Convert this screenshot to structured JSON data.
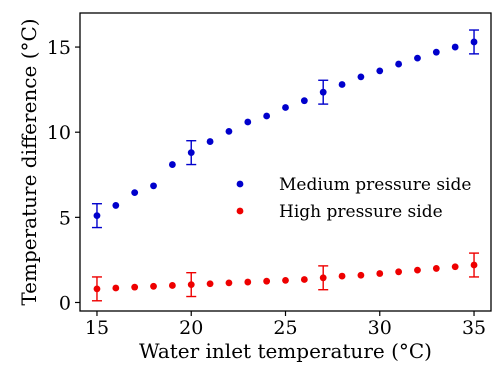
{
  "chart_data": {
    "type": "scatter",
    "xlabel": "Water inlet temperature (°C)",
    "ylabel": "Temperature difference (°C)",
    "xlim": [
      14.1,
      35.9
    ],
    "ylim": [
      -0.5,
      17.0
    ],
    "xticks": [
      "15",
      "20",
      "25",
      "30",
      "35"
    ],
    "yticks": [
      "0",
      "5",
      "10",
      "15"
    ],
    "legend_position": "center-right",
    "grid": false,
    "series": [
      {
        "name": "Medium pressure side",
        "color": "#0000cc",
        "x": [
          15,
          16,
          17,
          18,
          19,
          20,
          21,
          22,
          23,
          24,
          25,
          26,
          27,
          28,
          29,
          30,
          31,
          32,
          33,
          34,
          35
        ],
        "y": [
          5.1,
          5.7,
          6.45,
          6.85,
          8.1,
          8.8,
          9.45,
          10.05,
          10.6,
          10.95,
          11.45,
          11.85,
          12.35,
          12.8,
          13.25,
          13.6,
          14.0,
          14.35,
          14.7,
          15.0,
          15.3
        ],
        "errors": [
          {
            "x": 15,
            "low": 4.4,
            "high": 5.8
          },
          {
            "x": 20,
            "low": 8.1,
            "high": 9.5
          },
          {
            "x": 27,
            "low": 11.65,
            "high": 13.05
          },
          {
            "x": 35,
            "low": 14.6,
            "high": 16.0
          }
        ]
      },
      {
        "name": "High pressure side",
        "color": "#ee0000",
        "x": [
          15,
          16,
          17,
          18,
          19,
          20,
          21,
          22,
          23,
          24,
          25,
          26,
          27,
          28,
          29,
          30,
          31,
          32,
          33,
          34,
          35
        ],
        "y": [
          0.8,
          0.85,
          0.9,
          0.95,
          1.0,
          1.05,
          1.1,
          1.15,
          1.2,
          1.25,
          1.3,
          1.35,
          1.45,
          1.55,
          1.6,
          1.7,
          1.8,
          1.9,
          2.0,
          2.1,
          2.2
        ],
        "errors": [
          {
            "x": 15,
            "low": 0.1,
            "high": 1.5
          },
          {
            "x": 20,
            "low": 0.35,
            "high": 1.75
          },
          {
            "x": 27,
            "low": 0.75,
            "high": 2.15
          },
          {
            "x": 35,
            "low": 1.5,
            "high": 2.9
          }
        ]
      }
    ]
  }
}
